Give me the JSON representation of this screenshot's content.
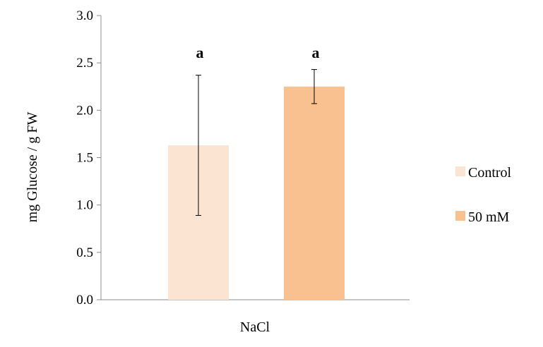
{
  "chart_data": {
    "type": "bar",
    "title": "",
    "xlabel": "",
    "ylabel": "mg Glucose / g FW",
    "ylim": [
      0,
      3.0
    ],
    "yticks": [
      "0.0",
      "0.5",
      "1.0",
      "1.5",
      "2.0",
      "2.5",
      "3.0"
    ],
    "grid": false,
    "legend_position": "right",
    "categories": [
      "NaCl"
    ],
    "series": [
      {
        "name": "Control",
        "values": [
          1.63
        ],
        "error": [
          0.74
        ],
        "significance": [
          "a"
        ],
        "color": "#FCE4D2"
      },
      {
        "name": "50 mM",
        "values": [
          2.25
        ],
        "error": [
          0.18
        ],
        "significance": [
          "a"
        ],
        "color": "#F9C090"
      }
    ]
  }
}
